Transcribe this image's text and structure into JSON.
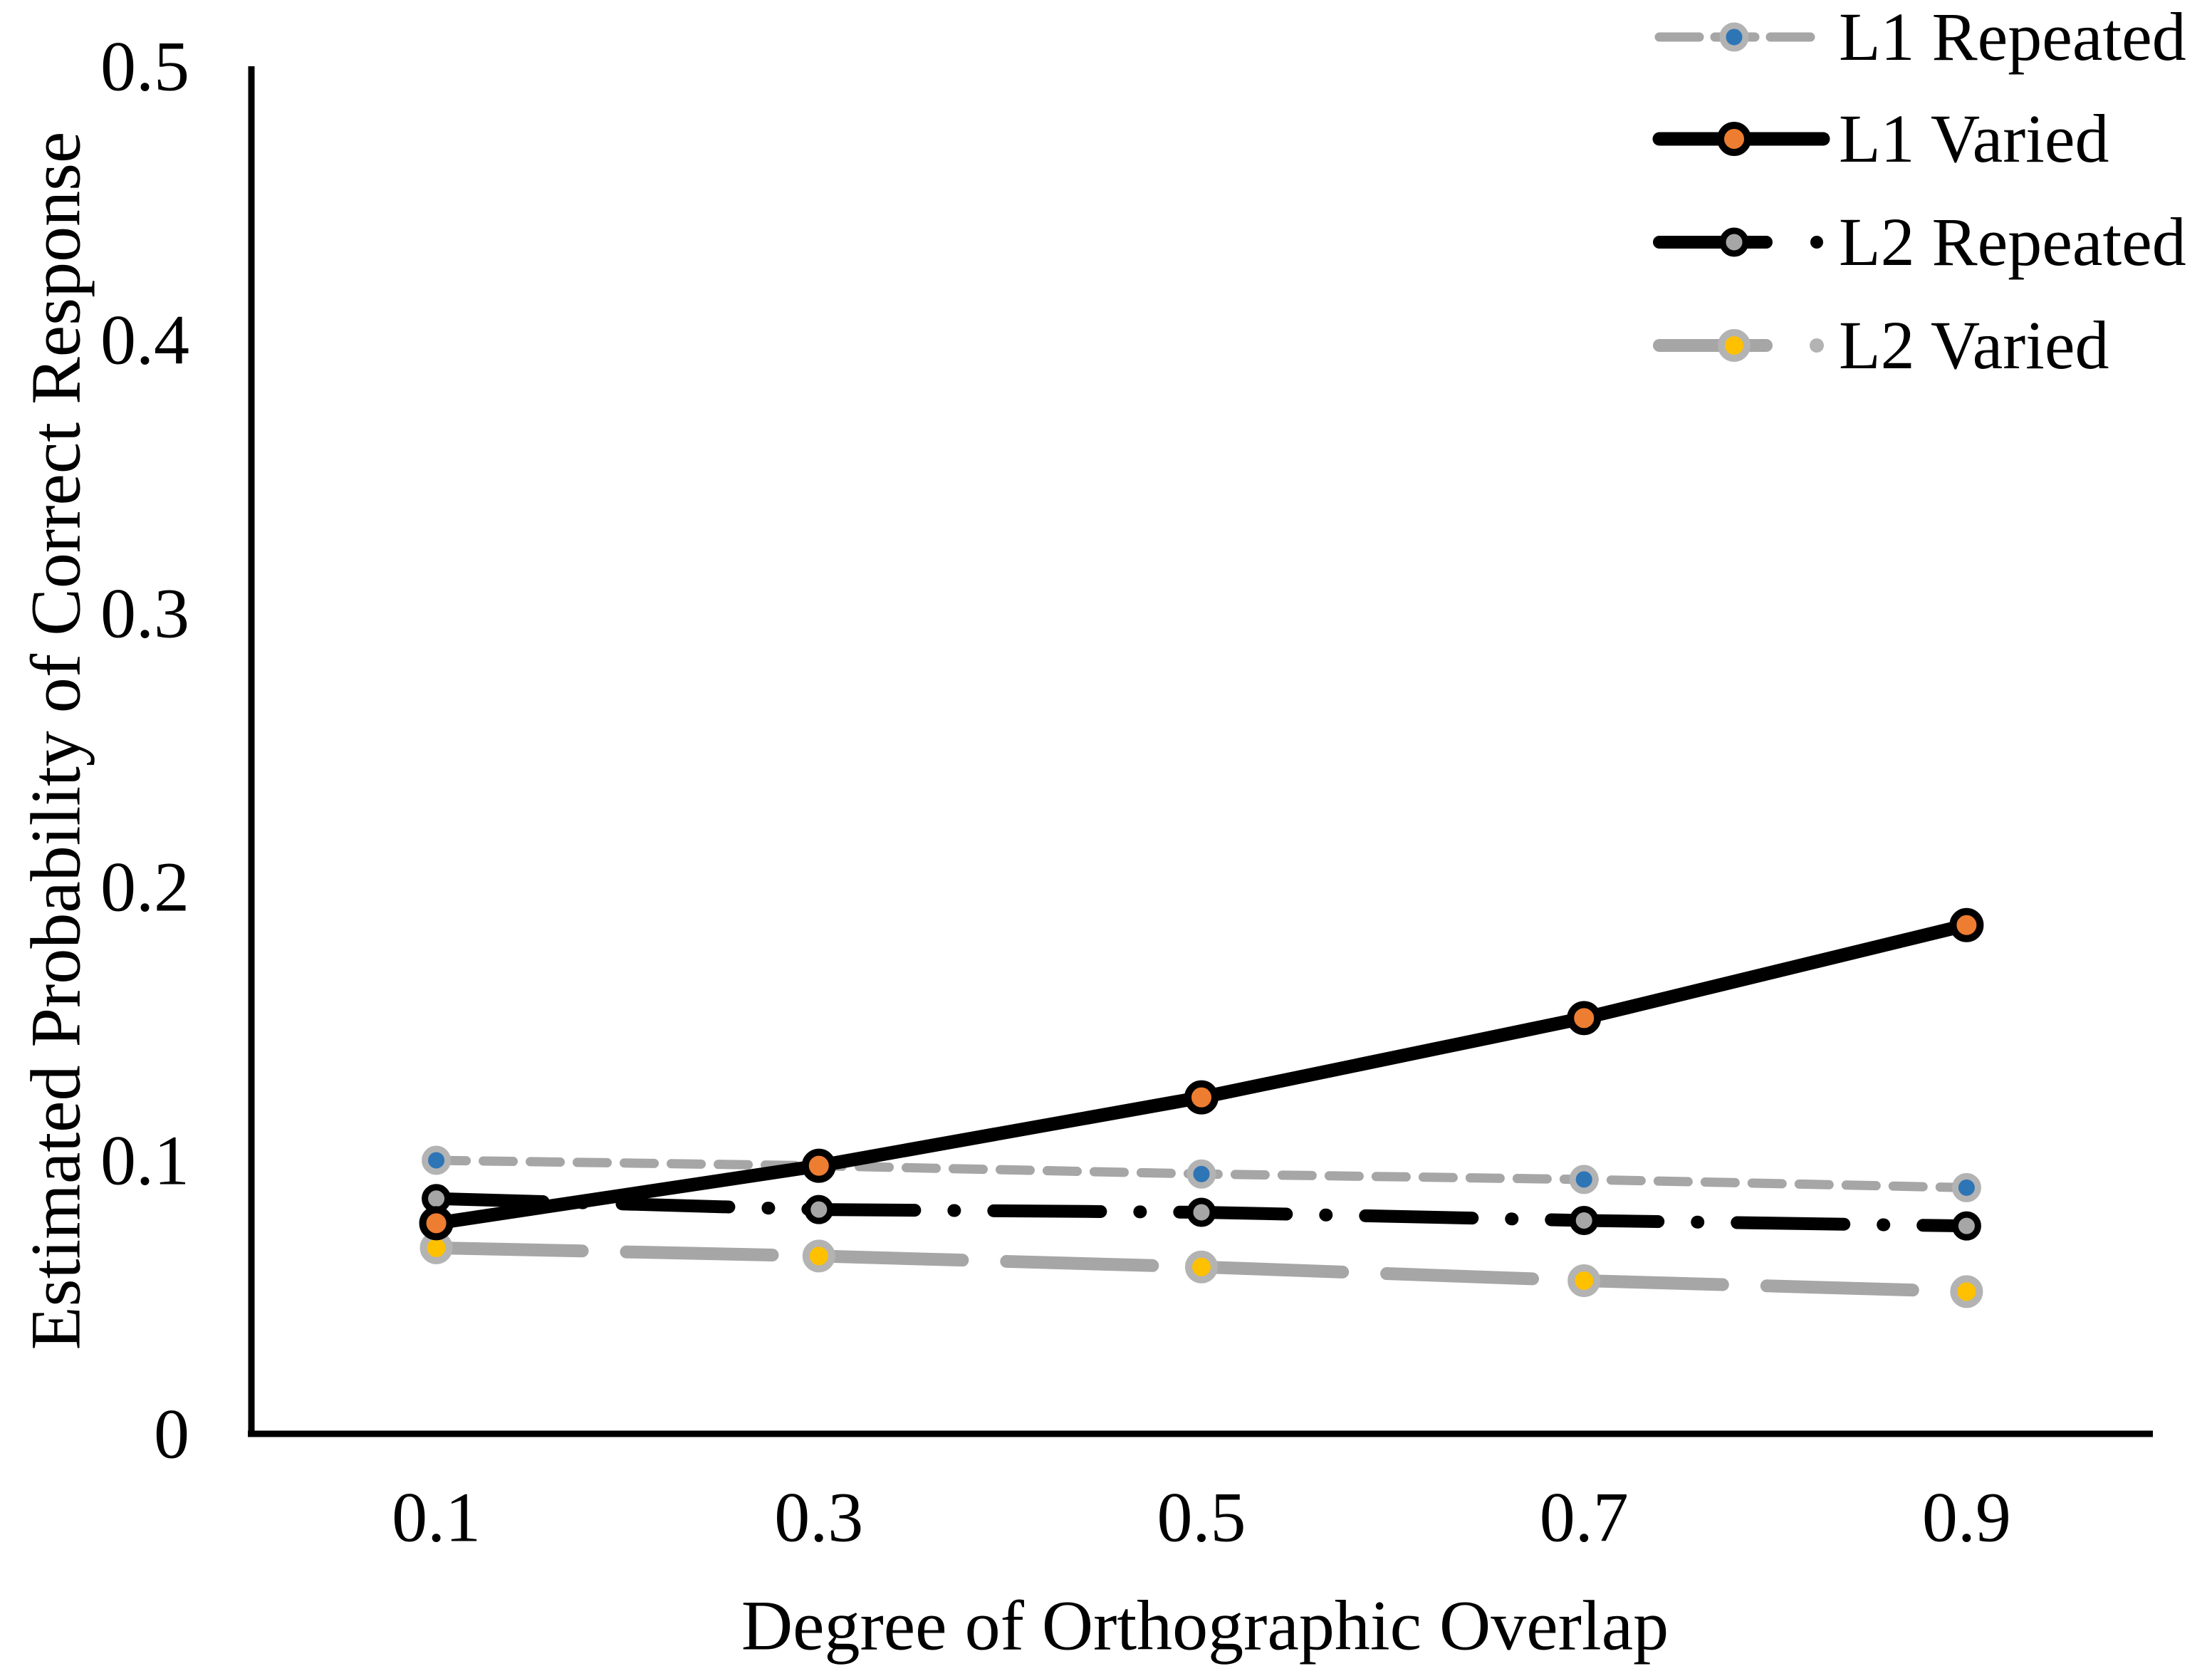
{
  "figure": {
    "xlabel": "Degree of Orthographic Overlap",
    "ylabel": "Estimated Probability of Correct Response"
  },
  "chart_data": {
    "type": "line",
    "title": "",
    "xlabel": "Degree of Orthographic Overlap",
    "ylabel": "Estimated Probability of Correct Response",
    "x": [
      0.1,
      0.3,
      0.5,
      0.7,
      0.9
    ],
    "xlim": [
      0,
      1
    ],
    "ylim": [
      0,
      0.5
    ],
    "xticks": [
      0.1,
      0.3,
      0.5,
      0.7,
      0.9
    ],
    "yticks": [
      0,
      0.1,
      0.2,
      0.3,
      0.4,
      0.5
    ],
    "grid": false,
    "legend_position": "top-right",
    "series": [
      {
        "name": "L1 Repeated",
        "values": [
          0.1,
          0.098,
          0.095,
          0.093,
          0.09
        ],
        "line_color": "#A6A6A6",
        "line_style": "dash",
        "marker": "circle",
        "marker_color": "#2E75B6",
        "marker_outline": "#B3B3B3"
      },
      {
        "name": "L1 Varied",
        "values": [
          0.077,
          0.098,
          0.123,
          0.152,
          0.186
        ],
        "line_color": "#000000",
        "line_style": "solid",
        "marker": "circle",
        "marker_color": "#ED7D31",
        "marker_outline": "#000000"
      },
      {
        "name": "L2 Repeated",
        "values": [
          0.086,
          0.082,
          0.081,
          0.078,
          0.076
        ],
        "line_color": "#000000",
        "line_style": "dash-dot",
        "marker": "circle",
        "marker_color": "#A6A6A6",
        "marker_outline": "#000000"
      },
      {
        "name": "L2 Varied",
        "values": [
          0.068,
          0.065,
          0.061,
          0.056,
          0.052
        ],
        "line_color": "#A6A6A6",
        "line_style": "long-dash-dot",
        "marker": "circle",
        "marker_color": "#FFC000",
        "marker_outline": "#B3B3B3"
      }
    ]
  }
}
